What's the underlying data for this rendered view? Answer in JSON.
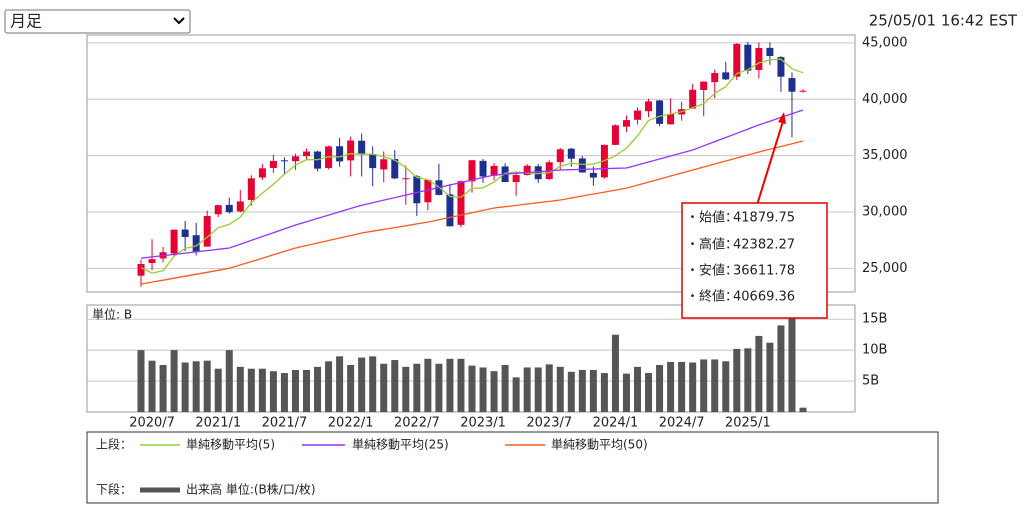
{
  "ui": {
    "period_select": "月足",
    "timestamp": "25/05/01 16:42 EST"
  },
  "tooltip": {
    "labels": [
      "・始値：",
      "・高値：",
      "・安値：",
      "・終値："
    ]
  },
  "chart_data": [
    {
      "type": "candlestick",
      "legend_title": "上段：",
      "up_color": "#e60033",
      "down_color": "#1f2f8f",
      "categories": [
        null,
        null,
        "2020/7",
        null,
        null,
        null,
        null,
        null,
        "2021/1",
        null,
        null,
        null,
        null,
        null,
        "2021/7",
        null,
        null,
        null,
        null,
        null,
        "2022/1",
        null,
        null,
        null,
        null,
        null,
        "2022/7",
        null,
        null,
        null,
        null,
        null,
        "2023/1",
        null,
        null,
        null,
        null,
        null,
        "2023/7",
        null,
        null,
        null,
        null,
        null,
        "2024/1",
        null,
        null,
        null,
        null,
        null,
        "2024/7",
        null,
        null,
        null,
        null,
        null,
        "2025/1",
        null,
        null,
        null,
        null
      ],
      "open": [
        24346,
        25475,
        25879,
        26314,
        28439,
        27941,
        26926,
        29798,
        30627,
        30054,
        31065,
        33055,
        33904,
        34584,
        34507,
        34969,
        35361,
        33907,
        35834,
        34576,
        36322,
        35146,
        33775,
        34703,
        32990,
        33157,
        30860,
        32813,
        31558,
        28855,
        32718,
        34536,
        33205,
        34039,
        32657,
        33273,
        34054,
        32923,
        34424,
        35614,
        34749,
        33463,
        33071,
        35953,
        37566,
        38180,
        38940,
        39893,
        37773,
        38651,
        39169,
        40824,
        41524,
        42385,
        41999,
        44835,
        42601,
        44557,
        43737,
        41879.75,
        40669
      ],
      "high": [
        25758,
        27581,
        26891,
        28431,
        29199,
        29042,
        30116,
        30637,
        31272,
        31961,
        33259,
        34257,
        35091,
        34849,
        35172,
        35631,
        35444,
        35892,
        36565,
        36679,
        36953,
        35824,
        35372,
        35492,
        34118,
        33272,
        32910,
        34281,
        32505,
        32780,
        34595,
        34712,
        34342,
        34335,
        33391,
        34257,
        34257,
        34589,
        35679,
        35679,
        34979,
        34020,
        35983,
        37778,
        38561,
        39282,
        40051,
        39931,
        40077,
        39776,
        41376,
        41585,
        42628,
        43325,
        44983,
        45074,
        45054,
        45050,
        43851,
        42382.27,
        40900
      ],
      "low": [
        23361,
        24843,
        25524,
        26030,
        26537,
        26143,
        26926,
        29550,
        29857,
        29970,
        30548,
        32835,
        33474,
        33271,
        33741,
        34616,
        33613,
        33785,
        34006,
        33152,
        33150,
        32272,
        32632,
        32913,
        30635,
        29653,
        30143,
        31470,
        28715,
        28660,
        31727,
        32573,
        32812,
        32657,
        31429,
        33235,
        32586,
        32830,
        33705,
        34030,
        33482,
        32327,
        32972,
        35922,
        37100,
        37760,
        38403,
        37612,
        37773,
        38103,
        39168,
        38499,
        40091,
        41706,
        41707,
        42238,
        41845,
        43057,
        40661,
        36611.78,
        40600
      ],
      "close": [
        25383,
        25813,
        26428,
        28430,
        27782,
        26502,
        29639,
        30606,
        29983,
        30932,
        32982,
        33875,
        34529,
        34503,
        34935,
        35361,
        33844,
        35820,
        34484,
        36338,
        35132,
        33893,
        34678,
        32977,
        32990,
        30775,
        32845,
        31510,
        28726,
        32733,
        34590,
        33147,
        34086,
        32657,
        33274,
        34098,
        32908,
        34408,
        35560,
        34722,
        33508,
        33053,
        35951,
        37690,
        38150,
        38996,
        39807,
        37816,
        38686,
        39119,
        40843,
        41563,
        42330,
        41763,
        44911,
        42544,
        44545,
        43841,
        42002,
        40669.36,
        40752
      ],
      "series": [
        {
          "name": "単純移動平均(5)",
          "color": "#99cc33",
          "values": [
            25062,
            24574,
            24777,
            26080,
            26767,
            26991,
            27756,
            28592,
            28902,
            29532,
            30828,
            31676,
            32460,
            33364,
            34165,
            34641,
            34634,
            34893,
            34889,
            35169,
            35124,
            35133,
            34905,
            34604,
            33934,
            33063,
            32853,
            32219,
            31369,
            31318,
            32081,
            32141,
            32656,
            33443,
            33551,
            33452,
            33405,
            33469,
            34050,
            34339,
            34221,
            34250,
            34559,
            34985,
            35670,
            36768,
            38119,
            38492,
            38691,
            38885,
            39254,
            39605,
            40508,
            41124,
            42282,
            42622,
            43219,
            43504,
            43552,
            42704,
            42345
          ]
        },
        {
          "name": "単純移動平均(25)",
          "color": "#9933ff",
          "values": [
            25900,
            26012,
            26125,
            26237,
            26350,
            26462,
            26575,
            26687,
            26800,
            27140,
            27480,
            27820,
            28160,
            28500,
            28840,
            29133,
            29427,
            29720,
            30013,
            30307,
            30600,
            30825,
            31050,
            31275,
            31500,
            31725,
            31950,
            32172,
            32393,
            32615,
            32837,
            33058,
            33280,
            33353,
            33427,
            33500,
            33573,
            33647,
            33720,
            33750,
            33780,
            33810,
            33840,
            33870,
            33900,
            34167,
            34433,
            34700,
            34967,
            35233,
            35500,
            35870,
            36240,
            36610,
            36980,
            37350,
            37720,
            38053,
            38387,
            38720,
            39050
          ]
        },
        {
          "name": "単純移動平均(50)",
          "color": "#ff5a1f",
          "values": [
            23600,
            23775,
            23950,
            24125,
            24300,
            24475,
            24650,
            24825,
            25000,
            25300,
            25600,
            25900,
            26200,
            26500,
            26800,
            27022,
            27243,
            27465,
            27687,
            27908,
            28130,
            28292,
            28453,
            28615,
            28777,
            28938,
            29100,
            29308,
            29517,
            29725,
            29933,
            30142,
            30350,
            30468,
            30587,
            30705,
            30823,
            30942,
            31060,
            31237,
            31413,
            31590,
            31767,
            31943,
            32120,
            32387,
            32653,
            32920,
            33187,
            33453,
            33720,
            33987,
            34253,
            34520,
            34787,
            35053,
            35320,
            35565,
            35810,
            36055,
            36300
          ]
        }
      ],
      "ylim": [
        22900,
        45700
      ],
      "yticks": [
        {
          "value": 25000,
          "label": "25,000"
        },
        {
          "value": 30000,
          "label": "30,000"
        },
        {
          "value": 35000,
          "label": "35,000"
        },
        {
          "value": 40000,
          "label": "40,000"
        },
        {
          "value": 45000,
          "label": "45,000"
        }
      ],
      "grid": true
    },
    {
      "type": "bar",
      "unit_label": "単位: B",
      "legend_title": "下段：",
      "series": [
        {
          "name": "出来高 単位:(B株/口/枚)",
          "color": "#555555",
          "values": [
            10,
            8.3,
            7.6,
            10,
            8,
            8.2,
            8.3,
            7,
            10,
            7.3,
            7,
            7,
            6.6,
            6.3,
            6.8,
            6.8,
            7.3,
            8.2,
            9,
            7.6,
            8.8,
            9,
            7.8,
            8.4,
            7.3,
            7.8,
            8.6,
            7.8,
            8.6,
            8.6,
            7.5,
            7.2,
            6.6,
            7.6,
            5.6,
            7.2,
            7.2,
            7.7,
            7.3,
            6.5,
            6.8,
            6.8,
            6.3,
            12.5,
            6.2,
            7.3,
            6.3,
            7.6,
            8.1,
            8.1,
            8,
            8.5,
            8.5,
            8.2,
            10.2,
            10.3,
            12.3,
            11.2,
            14,
            15.5,
            0.7
          ]
        }
      ],
      "ylim": [
        0,
        17.3
      ],
      "yticks": [
        {
          "value": 5,
          "label": "5B"
        },
        {
          "value": 10,
          "label": "10B"
        },
        {
          "value": 15,
          "label": "15B"
        }
      ],
      "grid": true
    }
  ]
}
